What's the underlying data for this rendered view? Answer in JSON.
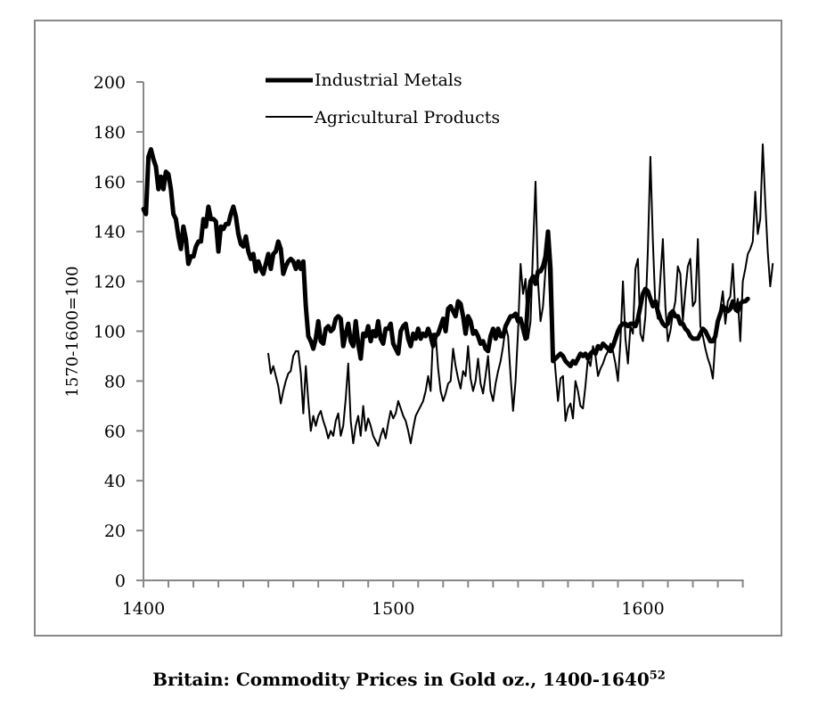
{
  "caption": {
    "text": "Britain: Commodity Prices in Gold oz., 1400-1640",
    "footnote": "52"
  },
  "chart_data": {
    "type": "line",
    "title": "Britain: Commodity Prices in Gold oz., 1400-1640",
    "xlabel": "",
    "ylabel": "1570-1600=100",
    "xlim": [
      1400,
      1640
    ],
    "ylim": [
      0,
      200
    ],
    "x_major_ticks": [
      1400,
      1500,
      1600
    ],
    "x_minor_tick_step": 10,
    "y_ticks": [
      0,
      20,
      40,
      60,
      80,
      100,
      120,
      140,
      160,
      180,
      200
    ],
    "grid": false,
    "legend": {
      "placement": "top-center",
      "entries": [
        "Industrial Metals",
        "Agricultural Products"
      ]
    },
    "series": [
      {
        "name": "Industrial Metals",
        "style": "thick",
        "start_year": 1400,
        "values": [
          149,
          147,
          170,
          173,
          169,
          166,
          157,
          162,
          157,
          164,
          163,
          157,
          147,
          145,
          138,
          133,
          142,
          137,
          127,
          130,
          130,
          134,
          136,
          136,
          145,
          142,
          150,
          145,
          145,
          144,
          132,
          142,
          141,
          143,
          143,
          147,
          150,
          146,
          139,
          135,
          134,
          138,
          132,
          129,
          131,
          124,
          128,
          125,
          123,
          127,
          131,
          125,
          131,
          132,
          136,
          133,
          123,
          126,
          128,
          129,
          128,
          125,
          128,
          125,
          128,
          110,
          98,
          96,
          93,
          97,
          104,
          96,
          95,
          101,
          102,
          100,
          101,
          105,
          106,
          105,
          94,
          99,
          103,
          96,
          94,
          104,
          95,
          89,
          99,
          98,
          102,
          96,
          100,
          98,
          104,
          97,
          95,
          101,
          101,
          103,
          95,
          93,
          91,
          100,
          102,
          103,
          97,
          94,
          99,
          97,
          101,
          97,
          99,
          98,
          101,
          98,
          94,
          98,
          99,
          102,
          105,
          100,
          109,
          110,
          108,
          106,
          112,
          111,
          106,
          99,
          106,
          104,
          99,
          100,
          98,
          95,
          96,
          93,
          92,
          98,
          101,
          97,
          101,
          98,
          98,
          102,
          104,
          106,
          106,
          107,
          104,
          105,
          101,
          97,
          113,
          120,
          122,
          119,
          124,
          124,
          126,
          130,
          140,
          125,
          88,
          89,
          90,
          91,
          90,
          88,
          87,
          86,
          88,
          87,
          89,
          91,
          90,
          91,
          89,
          91,
          92,
          91,
          94,
          93,
          95,
          94,
          93,
          92,
          94,
          97,
          100,
          102,
          103,
          103,
          102,
          103,
          103,
          102,
          105,
          110,
          115,
          117,
          116,
          113,
          110,
          112,
          108,
          105,
          103,
          102,
          103,
          107,
          108,
          106,
          106,
          103,
          103,
          101,
          100,
          98,
          97,
          97,
          97,
          99,
          101,
          100,
          98,
          96,
          96,
          98,
          104,
          107,
          110,
          109,
          108,
          109,
          112,
          109,
          108,
          111,
          112,
          112,
          113
        ]
      },
      {
        "name": "Agricultural Products",
        "style": "thin",
        "start_year": 1450,
        "values": [
          91,
          83,
          86,
          82,
          78,
          71,
          76,
          80,
          83,
          84,
          90,
          92,
          92,
          83,
          67,
          86,
          72,
          60,
          66,
          62,
          66,
          68,
          64,
          61,
          57,
          60,
          58,
          64,
          67,
          58,
          62,
          73,
          87,
          64,
          55,
          62,
          66,
          58,
          70,
          60,
          65,
          62,
          58,
          56,
          54,
          58,
          61,
          57,
          63,
          68,
          65,
          67,
          72,
          69,
          66,
          64,
          60,
          55,
          61,
          66,
          68,
          70,
          72,
          76,
          82,
          76,
          99,
          99,
          85,
          76,
          72,
          75,
          79,
          80,
          93,
          86,
          81,
          77,
          84,
          82,
          94,
          81,
          76,
          80,
          89,
          79,
          75,
          82,
          90,
          76,
          72,
          79,
          84,
          88,
          94,
          102,
          98,
          82,
          68,
          80,
          100,
          127,
          115,
          121,
          97,
          104,
          133,
          160,
          120,
          104,
          110,
          125,
          133,
          106,
          97,
          84,
          72,
          81,
          82,
          64,
          69,
          71,
          65,
          80,
          76,
          70,
          69,
          78,
          89,
          86,
          94,
          90,
          82,
          85,
          87,
          90,
          92,
          95,
          92,
          87,
          80,
          96,
          120,
          97,
          87,
          102,
          99,
          125,
          129,
          99,
          96,
          106,
          133,
          170,
          136,
          110,
          105,
          121,
          137,
          110,
          96,
          100,
          107,
          112,
          126,
          123,
          104,
          116,
          126,
          129,
          110,
          112,
          137,
          102,
          98,
          93,
          89,
          86,
          81,
          96,
          104,
          109,
          116,
          103,
          112,
          114,
          127,
          108,
          113,
          96,
          120,
          125,
          131,
          133,
          136,
          156,
          139,
          145,
          175,
          152,
          132,
          118,
          127
        ]
      }
    ]
  }
}
